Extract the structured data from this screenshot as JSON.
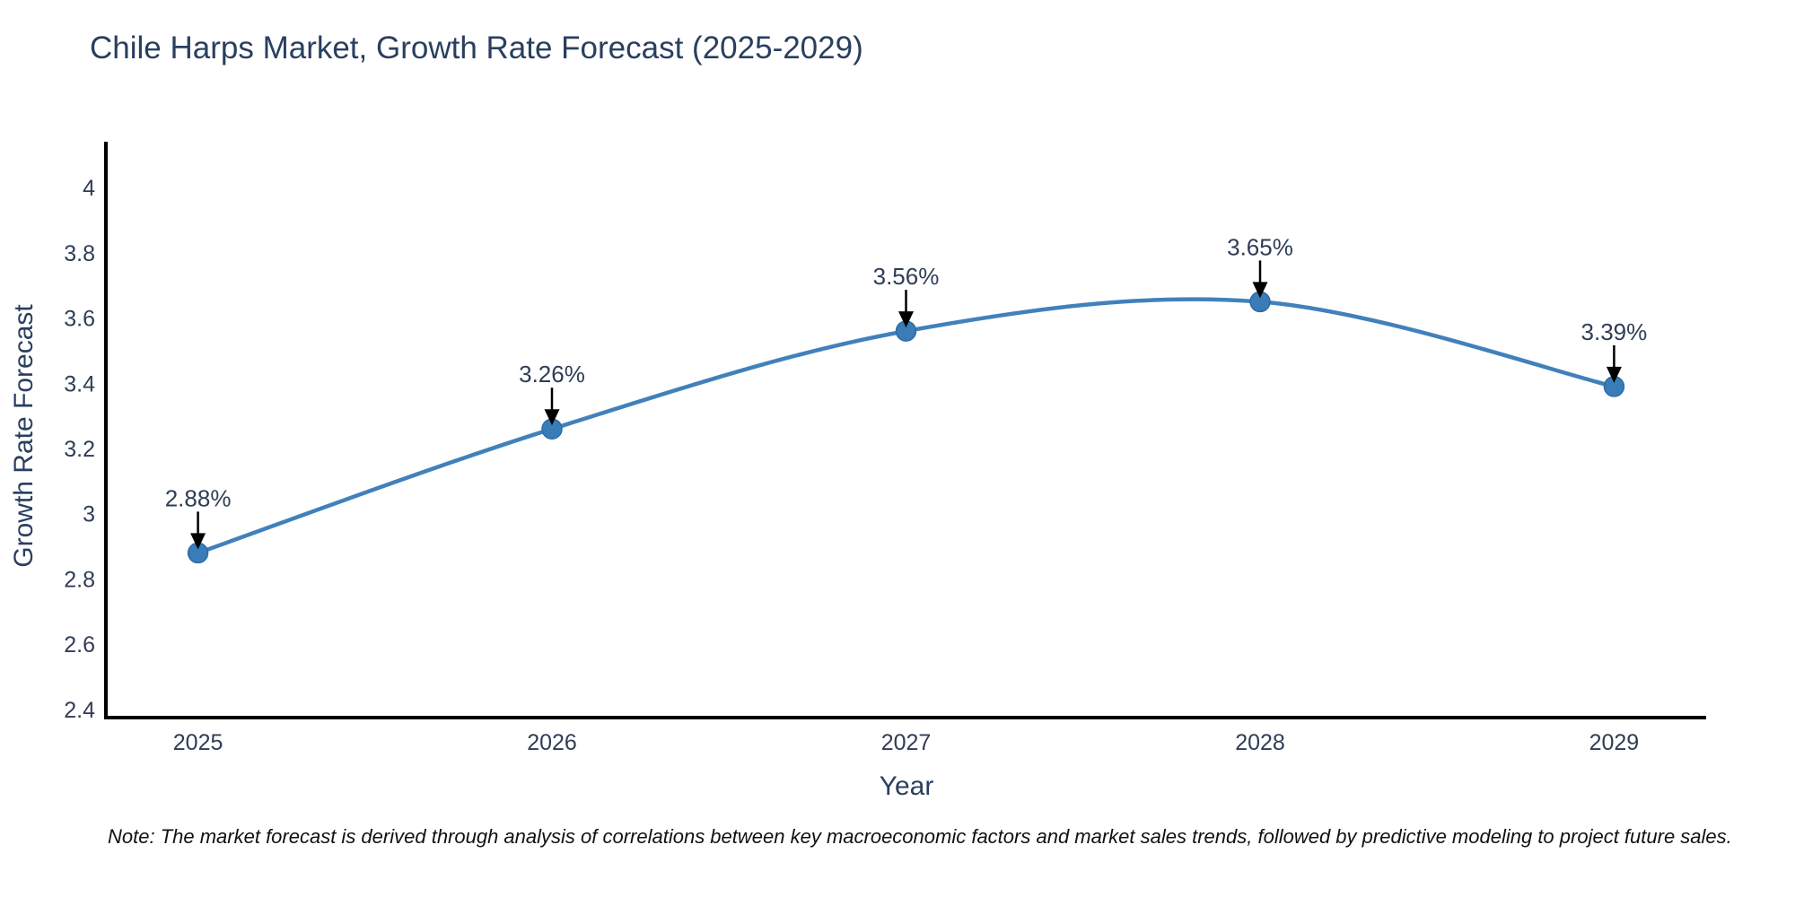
{
  "page": {
    "title": "Chile Harps Market, Growth Rate Forecast (2025-2029)",
    "note": "Note: The market forecast is derived through analysis of correlations between key macroeconomic factors and market sales trends, followed by predictive modeling to project future sales."
  },
  "chart_data": {
    "type": "line",
    "title": "Chile Harps Market, Growth Rate Forecast (2025-2029)",
    "xlabel": "Year",
    "ylabel": "Growth Rate Forecast",
    "x": [
      2025,
      2026,
      2027,
      2028,
      2029
    ],
    "series": [
      {
        "name": "Growth Rate Forecast",
        "values": [
          2.88,
          3.26,
          3.56,
          3.65,
          3.39
        ]
      }
    ],
    "point_labels": [
      "2.88%",
      "3.26%",
      "3.56%",
      "3.65%",
      "3.39%"
    ],
    "yticks": [
      2.4,
      2.6,
      2.8,
      3,
      3.2,
      3.4,
      3.6,
      3.8,
      4
    ],
    "ylim": [
      2.375,
      4.135
    ],
    "xlim": [
      2024.74,
      2029.26
    ],
    "grid": false,
    "legend": "none",
    "line_shape": "spline",
    "annotation_style": "arrow-down-to-point",
    "colors": {
      "line": "#4181bb",
      "marker": "#3a7cb8",
      "marker_edge": "#2e6ba6",
      "arrow": "#000000",
      "axis": "#000000",
      "tick_text": "#2f3d55",
      "annotation_text": "#2f3d55",
      "title_text": "#2a3f5f",
      "background": "#ffffff"
    }
  }
}
